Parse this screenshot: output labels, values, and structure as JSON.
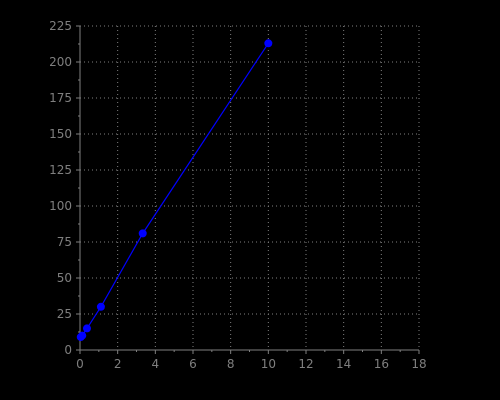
{
  "colors": {
    "background": "#000000",
    "axis": "#7f7f7f",
    "grid": "#7f7f7f",
    "series": "#0000ff"
  },
  "chart_data": {
    "type": "line",
    "title": "",
    "xlabel": "",
    "ylabel": "",
    "xlim": [
      0,
      18
    ],
    "ylim": [
      0,
      225
    ],
    "xticks": [
      0,
      2,
      4,
      6,
      8,
      10,
      12,
      14,
      16,
      18
    ],
    "yticks": [
      0,
      25,
      50,
      75,
      100,
      125,
      150,
      175,
      200,
      225
    ],
    "grid": true,
    "markers": true,
    "series": [
      {
        "x": [
          0.04,
          0.12,
          0.37,
          1.11,
          3.33,
          10
        ],
        "y": [
          9,
          10,
          15,
          30,
          81,
          213
        ]
      }
    ]
  }
}
